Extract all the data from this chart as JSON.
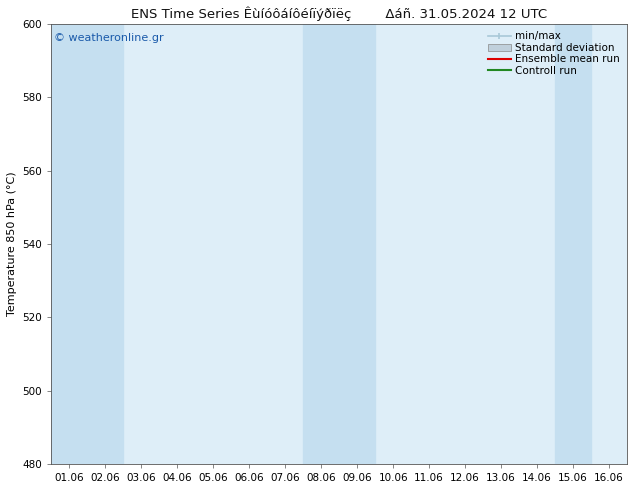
{
  "title_left": "ENS Time Series Êùíóôáíôéíïýðïëç",
  "title_right": "Δáñ. 31.05.2024 12 UTC",
  "ylabel": "Temperature 850 hPa (°C)",
  "ylim": [
    480,
    600
  ],
  "yticks": [
    480,
    500,
    520,
    540,
    560,
    580,
    600
  ],
  "xlabels": [
    "01.06",
    "02.06",
    "03.06",
    "04.06",
    "05.06",
    "06.06",
    "07.06",
    "08.06",
    "09.06",
    "10.06",
    "11.06",
    "12.06",
    "13.06",
    "14.06",
    "15.06",
    "16.06"
  ],
  "bg_color": "#ffffff",
  "plot_bg_color": "#deeef8",
  "band_color": "#c5dff0",
  "band_positions_x": [
    0,
    1,
    7,
    8,
    14
  ],
  "watermark": "© weatheronline.gr",
  "watermark_color": "#1a5aaa",
  "legend_items": [
    {
      "label": "min/max",
      "color": "#a8c8d8",
      "style": "minmax"
    },
    {
      "label": "Standard deviation",
      "color": "#c0d0dc",
      "style": "box"
    },
    {
      "label": "Ensemble mean run",
      "color": "#dd0000",
      "style": "line"
    },
    {
      "label": "Controll run",
      "color": "#228822",
      "style": "line"
    }
  ],
  "font_size_title": 9.5,
  "font_size_tick": 7.5,
  "font_size_legend": 7.5,
  "font_size_ylabel": 8,
  "font_size_watermark": 8
}
